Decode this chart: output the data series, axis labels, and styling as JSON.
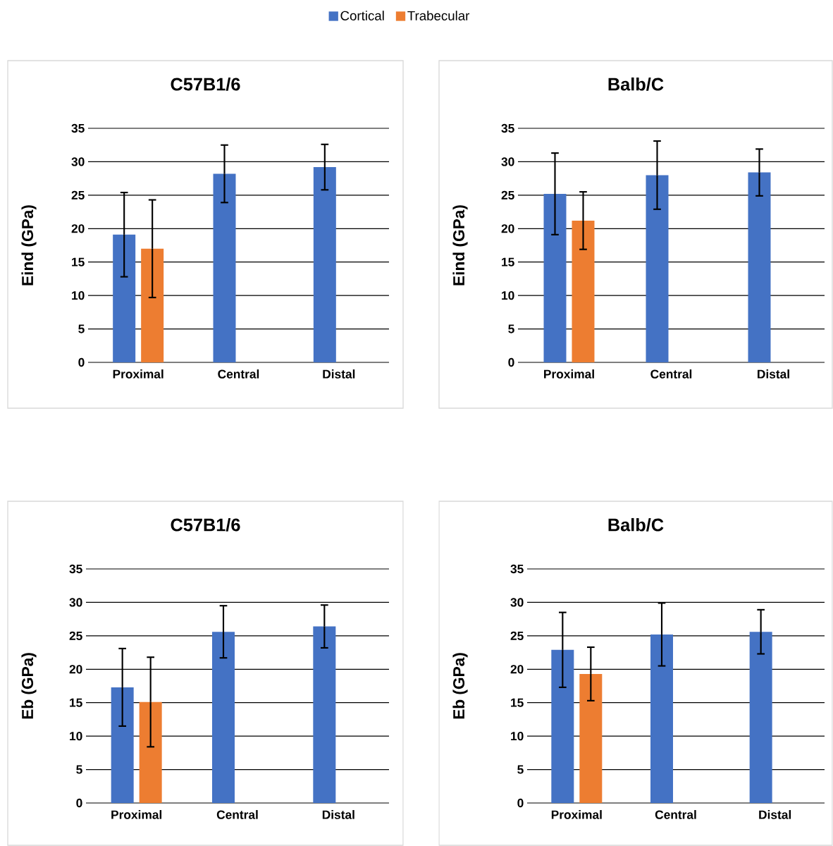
{
  "chart_data": [
    {
      "type": "bar",
      "title": "C57B1/6",
      "ylabel": "Eind (GPa)",
      "categories": [
        "Proximal",
        "Central",
        "Distal"
      ],
      "ylim": [
        0,
        35
      ],
      "yticks": [
        0,
        5,
        10,
        15,
        20,
        25,
        30,
        35
      ],
      "grid": "y",
      "legend": "top",
      "series": [
        {
          "name": "Cortical",
          "color": "#4472c4",
          "values": [
            19.1,
            28.2,
            29.2
          ],
          "errors": [
            6.3,
            4.3,
            3.4
          ]
        },
        {
          "name": "Trabecular",
          "color": "#ed7d31",
          "values": [
            17.0,
            null,
            null
          ],
          "errors": [
            7.3,
            null,
            null
          ]
        }
      ]
    },
    {
      "type": "bar",
      "title": "Balb/C",
      "ylabel": "Eind (GPa)",
      "categories": [
        "Proximal",
        "Central",
        "Distal"
      ],
      "ylim": [
        0,
        35
      ],
      "yticks": [
        0,
        5,
        10,
        15,
        20,
        25,
        30,
        35
      ],
      "grid": "y",
      "series": [
        {
          "color": "#4472c4",
          "values": [
            25.2,
            28.0,
            28.4
          ],
          "errors": [
            6.1,
            5.1,
            3.5
          ]
        },
        {
          "color": "#ed7d31",
          "values": [
            21.2,
            null,
            null
          ],
          "errors": [
            4.3,
            null,
            null
          ]
        }
      ]
    },
    {
      "type": "bar",
      "title": "C57B1/6",
      "ylabel": "Eb (GPa)",
      "categories": [
        "Proximal",
        "Central",
        "Distal"
      ],
      "ylim": [
        0,
        35
      ],
      "yticks": [
        0,
        5,
        10,
        15,
        20,
        25,
        30,
        35
      ],
      "grid": "y",
      "series": [
        {
          "color": "#4472c4",
          "values": [
            17.3,
            25.6,
            26.4
          ],
          "errors": [
            5.8,
            3.9,
            3.2
          ]
        },
        {
          "color": "#ed7d31",
          "values": [
            15.1,
            null,
            null
          ],
          "errors": [
            6.7,
            null,
            null
          ]
        }
      ]
    },
    {
      "type": "bar",
      "title": "Balb/C",
      "ylabel": "Eb (GPa)",
      "categories": [
        "Proximal",
        "Central",
        "Distal"
      ],
      "ylim": [
        0,
        35
      ],
      "yticks": [
        0,
        5,
        10,
        15,
        20,
        25,
        30,
        35
      ],
      "grid": "y",
      "series": [
        {
          "color": "#4472c4",
          "values": [
            22.9,
            25.2,
            25.6
          ],
          "errors": [
            5.6,
            4.7,
            3.3
          ]
        },
        {
          "color": "#ed7d31",
          "values": [
            19.3,
            null,
            null
          ],
          "errors": [
            4.0,
            null,
            null
          ]
        }
      ]
    }
  ]
}
